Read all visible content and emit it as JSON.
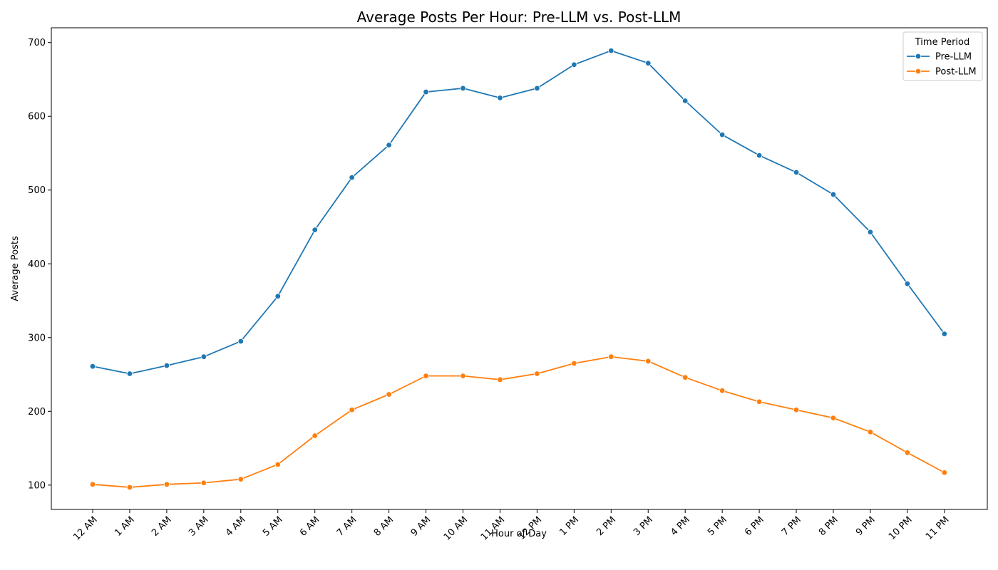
{
  "chart_data": {
    "type": "line",
    "title": "Average Posts Per Hour: Pre-LLM vs. Post-LLM",
    "xlabel": "Hour of Day",
    "ylabel": "Average Posts",
    "categories": [
      "12 AM",
      "1 AM",
      "2 AM",
      "3 AM",
      "4 AM",
      "5 AM",
      "6 AM",
      "7 AM",
      "8 AM",
      "9 AM",
      "10 AM",
      "11 AM",
      "12 PM",
      "1 PM",
      "2 PM",
      "3 PM",
      "4 PM",
      "5 PM",
      "6 PM",
      "7 PM",
      "8 PM",
      "9 PM",
      "10 PM",
      "11 PM"
    ],
    "ylim": [
      67,
      720
    ],
    "yticks": [
      100,
      200,
      300,
      400,
      500,
      600,
      700
    ],
    "grid": false,
    "legend": {
      "title": "Time Period",
      "placement": "top-right"
    },
    "series": [
      {
        "name": "Pre-LLM",
        "color": "#1f77b4",
        "values": [
          261,
          251,
          262,
          274,
          295,
          356,
          446,
          517,
          561,
          633,
          638,
          625,
          638,
          670,
          689,
          672,
          621,
          575,
          547,
          524,
          494,
          443,
          373,
          305
        ]
      },
      {
        "name": "Post-LLM",
        "color": "#ff7f0e",
        "values": [
          101,
          97,
          101,
          103,
          108,
          128,
          167,
          202,
          223,
          248,
          248,
          243,
          251,
          265,
          274,
          268,
          246,
          228,
          213,
          202,
          191,
          172,
          144,
          117
        ]
      }
    ]
  }
}
